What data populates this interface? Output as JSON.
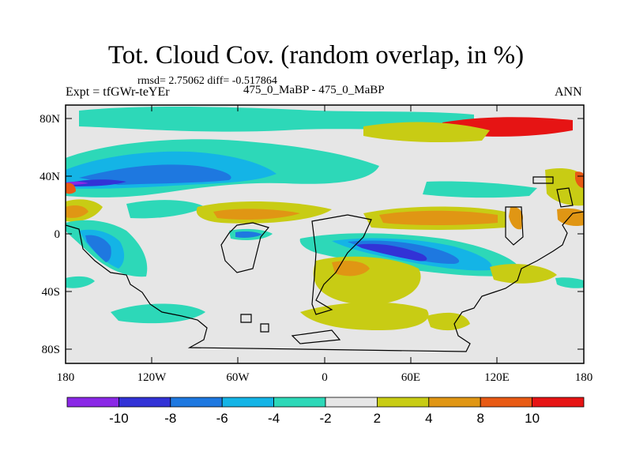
{
  "header": {
    "title": "Tot. Cloud Cov. (random overlap, in %)",
    "stats": "rmsd= 2.75062 diff= -0.517864",
    "experiment": "Expt = tfGWr-teYEr",
    "case": "475_0_MaBP - 475_0_MaBP",
    "season": "ANN"
  },
  "map": {
    "y_ticks": [
      "80N",
      "40N",
      "0",
      "40S",
      "80S"
    ],
    "x_ticks": [
      "180",
      "120W",
      "60W",
      "0",
      "60E",
      "120E",
      "180"
    ]
  },
  "colorbar": {
    "labels": [
      "-10",
      "-8",
      "-6",
      "-4",
      "-2",
      "2",
      "4",
      "8",
      "10"
    ],
    "colors": [
      "#8a28e6",
      "#3232d6",
      "#1e78e0",
      "#14b4e6",
      "#2dd8b8",
      "#e6e6e6",
      "#c8cc14",
      "#e09614",
      "#e85a14",
      "#e61414"
    ]
  },
  "palette": {
    "background": "#e6e6e6",
    "violet": "#8a28e6",
    "navy": "#3232d6",
    "blue": "#1e78e0",
    "sky": "#14b4e6",
    "cyan": "#2dd8b8",
    "olive": "#c8cc14",
    "orange": "#e09614",
    "red_orange": "#e85a14",
    "red": "#e61414"
  }
}
